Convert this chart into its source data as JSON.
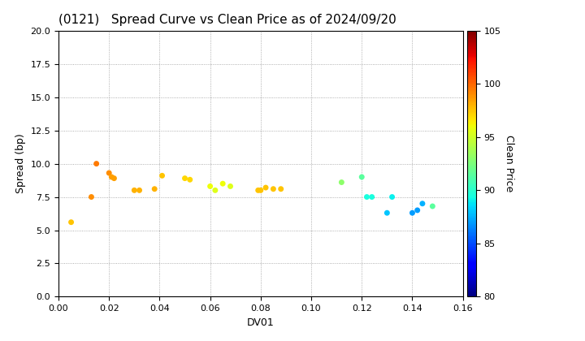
{
  "title": "(0121)   Spread Curve vs Clean Price as of 2024/09/20",
  "xlabel": "DV01",
  "ylabel": "Spread (bp)",
  "colorbar_label": "Clean Price",
  "xlim": [
    0.0,
    0.16
  ],
  "ylim": [
    0.0,
    20.0
  ],
  "xticks": [
    0.0,
    0.02,
    0.04,
    0.06,
    0.08,
    0.1,
    0.12,
    0.14,
    0.16
  ],
  "yticks": [
    0.0,
    2.5,
    5.0,
    7.5,
    10.0,
    12.5,
    15.0,
    17.5,
    20.0
  ],
  "cmap_min": 80,
  "cmap_max": 105,
  "cbar_ticks": [
    80,
    85,
    90,
    95,
    100,
    105
  ],
  "points": [
    {
      "dv01": 0.005,
      "spread": 5.6,
      "price": 97.5
    },
    {
      "dv01": 0.013,
      "spread": 7.5,
      "price": 99.0
    },
    {
      "dv01": 0.015,
      "spread": 10.0,
      "price": 99.5
    },
    {
      "dv01": 0.02,
      "spread": 9.3,
      "price": 99.0
    },
    {
      "dv01": 0.021,
      "spread": 9.0,
      "price": 98.5
    },
    {
      "dv01": 0.022,
      "spread": 8.9,
      "price": 98.5
    },
    {
      "dv01": 0.03,
      "spread": 8.0,
      "price": 98.0
    },
    {
      "dv01": 0.032,
      "spread": 8.0,
      "price": 98.0
    },
    {
      "dv01": 0.038,
      "spread": 8.1,
      "price": 98.0
    },
    {
      "dv01": 0.041,
      "spread": 9.1,
      "price": 97.5
    },
    {
      "dv01": 0.05,
      "spread": 8.9,
      "price": 97.0
    },
    {
      "dv01": 0.052,
      "spread": 8.8,
      "price": 97.0
    },
    {
      "dv01": 0.06,
      "spread": 8.3,
      "price": 96.0
    },
    {
      "dv01": 0.062,
      "spread": 8.0,
      "price": 95.5
    },
    {
      "dv01": 0.065,
      "spread": 8.5,
      "price": 96.0
    },
    {
      "dv01": 0.068,
      "spread": 8.3,
      "price": 95.5
    },
    {
      "dv01": 0.079,
      "spread": 8.0,
      "price": 97.5
    },
    {
      "dv01": 0.08,
      "spread": 8.0,
      "price": 97.5
    },
    {
      "dv01": 0.082,
      "spread": 8.2,
      "price": 97.5
    },
    {
      "dv01": 0.085,
      "spread": 8.1,
      "price": 97.5
    },
    {
      "dv01": 0.088,
      "spread": 8.1,
      "price": 97.5
    },
    {
      "dv01": 0.112,
      "spread": 8.6,
      "price": 93.0
    },
    {
      "dv01": 0.12,
      "spread": 9.0,
      "price": 91.5
    },
    {
      "dv01": 0.122,
      "spread": 7.5,
      "price": 89.5
    },
    {
      "dv01": 0.124,
      "spread": 7.5,
      "price": 89.5
    },
    {
      "dv01": 0.13,
      "spread": 6.3,
      "price": 88.0
    },
    {
      "dv01": 0.132,
      "spread": 7.5,
      "price": 89.0
    },
    {
      "dv01": 0.14,
      "spread": 6.3,
      "price": 87.0
    },
    {
      "dv01": 0.142,
      "spread": 6.5,
      "price": 87.0
    },
    {
      "dv01": 0.144,
      "spread": 7.0,
      "price": 87.5
    },
    {
      "dv01": 0.148,
      "spread": 6.8,
      "price": 91.5
    }
  ],
  "marker_size": 25,
  "background_color": "#ffffff",
  "grid_color": "#999999",
  "title_fontsize": 11,
  "axis_fontsize": 9,
  "tick_fontsize": 8
}
